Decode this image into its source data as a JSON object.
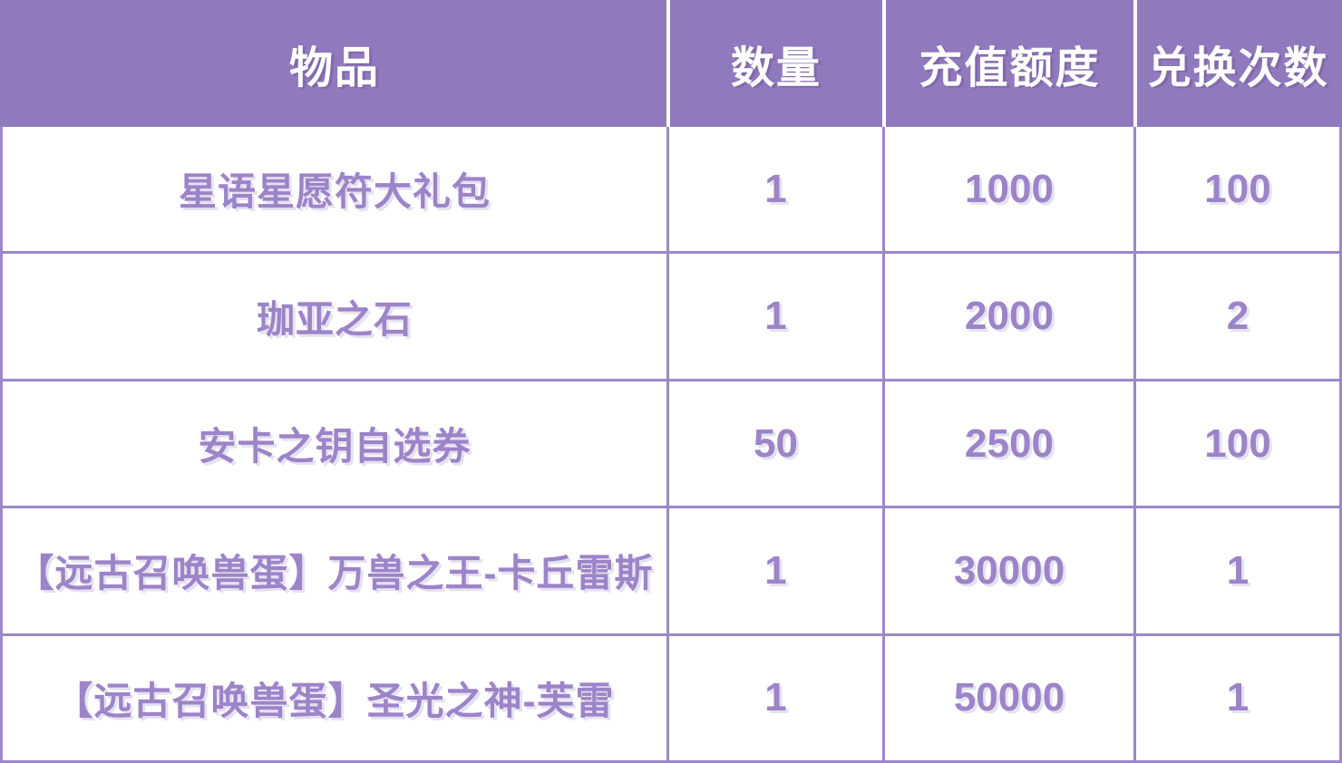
{
  "chart_data": {
    "type": "table",
    "columns": [
      "物品",
      "数量",
      "充值额度",
      "兑换次数"
    ],
    "rows": [
      [
        "星语星愿符大礼包",
        "1",
        "1000",
        "100"
      ],
      [
        "珈亚之石",
        "1",
        "2000",
        "2"
      ],
      [
        "安卡之钥自选券",
        "50",
        "2500",
        "100"
      ],
      [
        "【远古召唤兽蛋】万兽之王-卡丘雷斯",
        "1",
        "30000",
        "1"
      ],
      [
        "【远古召唤兽蛋】圣光之神-芙雷",
        "1",
        "50000",
        "1"
      ]
    ],
    "title": "",
    "legend_position": "none",
    "grid": "on"
  },
  "colors": {
    "header_bg": "#9079bc",
    "header_text": "#ffffff",
    "cell_text": "#9c84c8",
    "grid_border": "#9c87c8",
    "row_bg": "#ffffff"
  }
}
